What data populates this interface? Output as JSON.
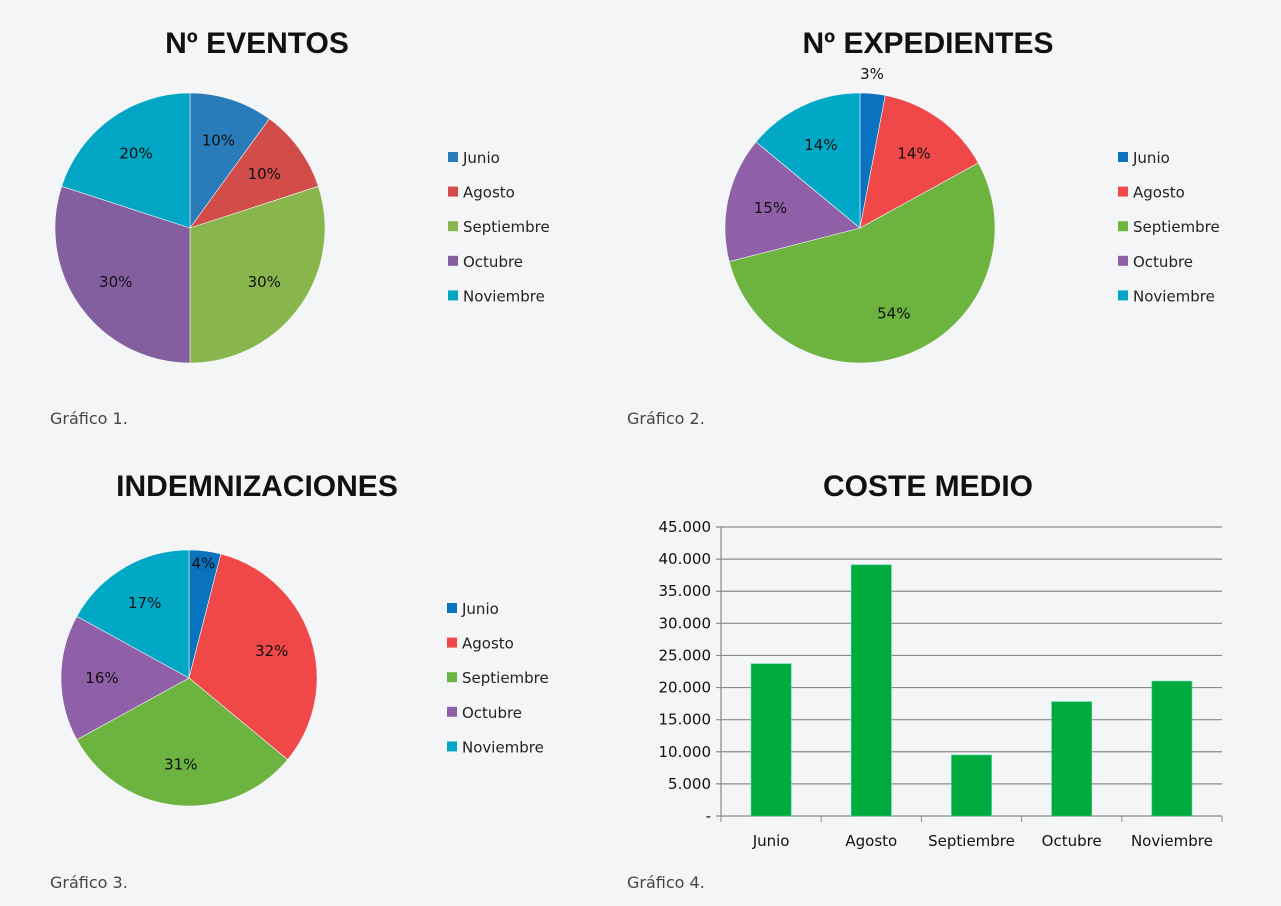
{
  "chart_data": [
    {
      "type": "pie",
      "title": "Nº EVENTOS",
      "caption": "Gráfico 1.",
      "categories": [
        "Junio",
        "Agosto",
        "Septiembre",
        "Octubre",
        "Noviembre"
      ],
      "values": [
        10,
        10,
        30,
        30,
        20
      ],
      "labels": [
        "10%",
        "10%",
        "30%",
        "30%",
        "20%"
      ],
      "colors": [
        "#2a7bba",
        "#d24c4a",
        "#88b64c",
        "#845fa0",
        "#00a6c4"
      ],
      "legend": "right"
    },
    {
      "type": "pie",
      "title": "Nº EXPEDIENTES",
      "caption": "Gráfico 2.",
      "categories": [
        "Junio",
        "Agosto",
        "Septiembre",
        "Octubre",
        "Noviembre"
      ],
      "values": [
        3,
        14,
        54,
        15,
        14
      ],
      "labels": [
        "3%",
        "14%",
        "54%",
        "15%",
        "14%"
      ],
      "colors": [
        "#0a73c0",
        "#f04848",
        "#6db33f",
        "#8f5fa8",
        "#00a8c6"
      ],
      "legend": "right"
    },
    {
      "type": "pie",
      "title": "INDEMNIZACIONES",
      "caption": "Gráfico 3.",
      "categories": [
        "Junio",
        "Agosto",
        "Septiembre",
        "Octubre",
        "Noviembre"
      ],
      "values": [
        4,
        32,
        31,
        16,
        17
      ],
      "labels": [
        "4%",
        "32%",
        "31%",
        "16%",
        "17%"
      ],
      "colors": [
        "#0a73c0",
        "#f04848",
        "#6db33f",
        "#8f5fa8",
        "#00a8c6"
      ],
      "legend": "right"
    },
    {
      "type": "bar",
      "title": "COSTE MEDIO",
      "caption": "Gráfico 4.",
      "categories": [
        "Junio",
        "Agosto",
        "Septiembre",
        "Octubre",
        "Noviembre"
      ],
      "values": [
        23700,
        39100,
        9500,
        17800,
        21000
      ],
      "ylim": [
        0,
        45000
      ],
      "yticks": [
        "-",
        "5.000",
        "10.000",
        "15.000",
        "20.000",
        "25.000",
        "30.000",
        "35.000",
        "40.000",
        "45.000"
      ],
      "color": "#00aa3c",
      "grid": true,
      "xlabel": "",
      "ylabel": ""
    }
  ]
}
